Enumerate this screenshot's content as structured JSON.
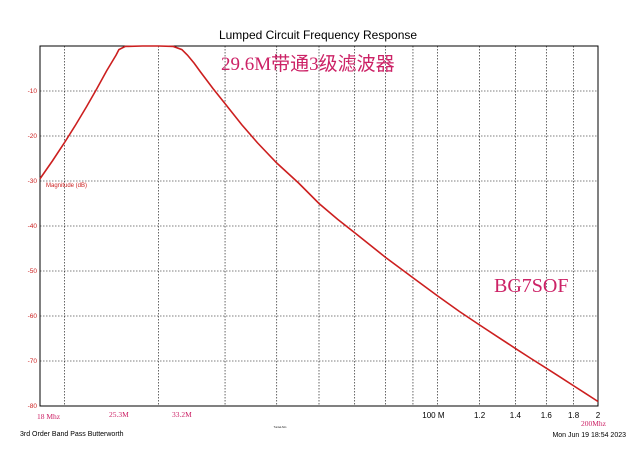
{
  "chart_data": {
    "type": "line",
    "title": "Lumped Circuit Frequency Response",
    "annotation_title": "29.6M带通3级滤波器",
    "annotation_callsign": "BG7SOF",
    "ylabel": "Magnitude (dB)",
    "footer_left": "3rd Order Band Pass Butterworth",
    "footer_right": "Mon Jun 19 18:54 2023",
    "footer_mid": "Tunnel-Sim",
    "x_scale": "log",
    "xlim": [
      18,
      200
    ],
    "ylim": [
      -80,
      0
    ],
    "grid": true,
    "line_color": "#cc1f1f",
    "annotation_color": "#cc2266",
    "y_ticks": [
      {
        "value": -10,
        "label": "-10"
      },
      {
        "value": -20,
        "label": "-20"
      },
      {
        "value": -30,
        "label": "-30"
      },
      {
        "value": -40,
        "label": "-40"
      },
      {
        "value": -50,
        "label": "-50"
      },
      {
        "value": -60,
        "label": "-60"
      },
      {
        "value": -70,
        "label": "-70"
      },
      {
        "value": -80,
        "label": "-80"
      }
    ],
    "x_grid": [
      20,
      30,
      40,
      50,
      60,
      70,
      80,
      90,
      100,
      120,
      140,
      160,
      180
    ],
    "x_ticks": [
      {
        "value": 100,
        "label": "100 M"
      },
      {
        "value": 120,
        "label": "1.2"
      },
      {
        "value": 140,
        "label": "1.4"
      },
      {
        "value": 160,
        "label": "1.6"
      },
      {
        "value": 180,
        "label": "1.8"
      },
      {
        "value": 200,
        "label": "2"
      }
    ],
    "x_annotations": [
      {
        "value": 18,
        "label": "18 Mhz"
      },
      {
        "value": 25.3,
        "label": "25.3M"
      },
      {
        "value": 33.2,
        "label": "33.2M"
      },
      {
        "value": 200,
        "label": "200Mhz"
      }
    ],
    "series": [
      {
        "x": [
          18,
          19,
          20,
          21,
          22,
          23,
          24,
          25,
          25.3,
          26,
          28,
          30,
          32,
          33.2,
          34,
          35,
          36,
          38,
          40,
          43,
          46,
          50,
          55,
          60,
          65,
          70,
          80,
          90,
          100,
          110,
          120,
          130,
          140,
          150,
          160,
          170,
          180,
          190,
          200
        ],
        "y": [
          -29.5,
          -25.5,
          -21.5,
          -17.5,
          -13.5,
          -9.5,
          -5.5,
          -2.0,
          -0.8,
          -0.1,
          0,
          0,
          -0.1,
          -0.8,
          -2.0,
          -3.8,
          -5.8,
          -9.5,
          -12.8,
          -17.5,
          -21.5,
          -26.0,
          -30.5,
          -35.0,
          -38.5,
          -41.5,
          -47.0,
          -51.5,
          -55.5,
          -59.0,
          -62.0,
          -64.7,
          -67.2,
          -69.5,
          -71.6,
          -73.6,
          -75.5,
          -77.3,
          -79.0
        ]
      }
    ]
  }
}
